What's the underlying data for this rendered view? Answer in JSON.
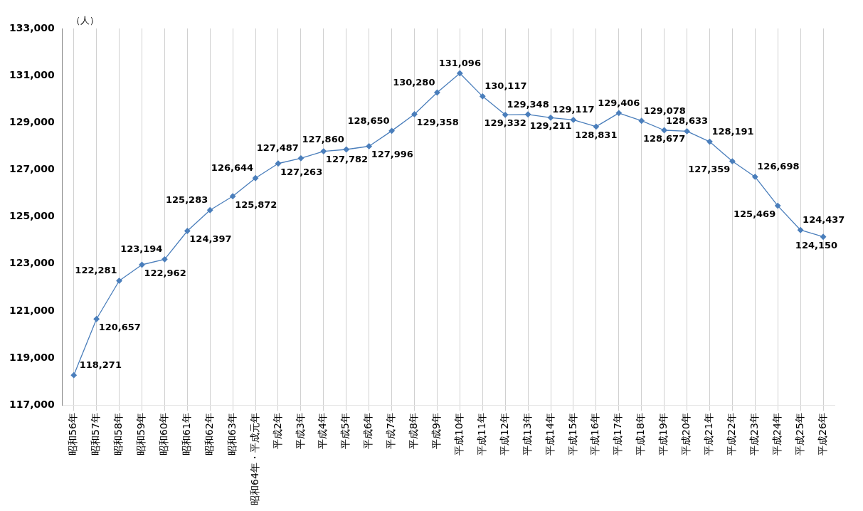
{
  "chart_data": {
    "type": "line",
    "ylabel": "（人）",
    "categories": [
      "昭和56年",
      "昭和57年",
      "昭和58年",
      "昭和59年",
      "昭和60年",
      "昭和61年",
      "昭和62年",
      "昭和63年",
      "昭和64年・平成元年",
      "平成2年",
      "平成3年",
      "平成4年",
      "平成5年",
      "平成6年",
      "平成7年",
      "平成8年",
      "平成9年",
      "平成10年",
      "平成11年",
      "平成12年",
      "平成13年",
      "平成14年",
      "平成15年",
      "平成16年",
      "平成17年",
      "平成18年",
      "平成19年",
      "平成20年",
      "平成21年",
      "平成22年",
      "平成23年",
      "平成24年",
      "平成25年",
      "平成26年"
    ],
    "series": [
      {
        "color": "#4a7ebb",
        "values": [
          118271,
          120657,
          122281,
          122962,
          123194,
          124397,
          125283,
          125872,
          126644,
          127263,
          127487,
          127782,
          127860,
          127996,
          128650,
          129358,
          130280,
          131096,
          130117,
          129332,
          129348,
          129211,
          129117,
          128831,
          129406,
          129078,
          128677,
          128633,
          128191,
          127359,
          126698,
          125469,
          124437,
          124150
        ],
        "value_labels": [
          "118,271",
          "120,657",
          "122,281",
          "122,962",
          "123,194",
          "124,397",
          "125,283",
          "125,872",
          "126,644",
          "127,263",
          "127,487",
          "127,782",
          "127,860",
          "127,996",
          "128,650",
          "129,358",
          "130,280",
          "131,096",
          "130,117",
          "129,332",
          "129,348",
          "129,211",
          "129,117",
          "128,831",
          "129,406",
          "129,078",
          "128,677",
          "128,633",
          "128,191",
          "127,359",
          "126,698",
          "125,469",
          "124,437",
          "124,150"
        ]
      }
    ],
    "ylim": [
      117000,
      133000
    ],
    "yticks": [
      {
        "value": 117000,
        "label": "117,000"
      },
      {
        "value": 119000,
        "label": "119,000"
      },
      {
        "value": 121000,
        "label": "121,000"
      },
      {
        "value": 123000,
        "label": "123,000"
      },
      {
        "value": 125000,
        "label": "125,000"
      },
      {
        "value": 127000,
        "label": "127,000"
      },
      {
        "value": 129000,
        "label": "129,000"
      },
      {
        "value": 131000,
        "label": "131,000"
      },
      {
        "value": 133000,
        "label": "133,000"
      }
    ],
    "grid": "x",
    "legend": false,
    "marker": "diamond",
    "line_style": "solid"
  }
}
